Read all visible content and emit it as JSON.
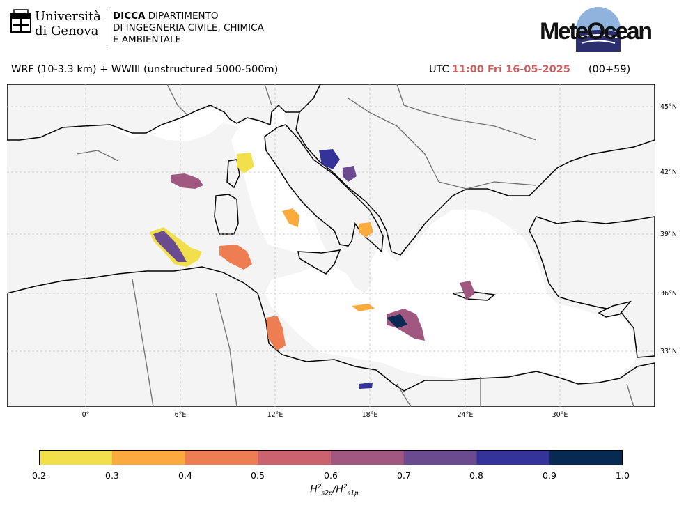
{
  "header": {
    "university_line1": "Università",
    "university_line2": "di Genova",
    "dicca_bold": "DICCA",
    "dicca_line1_rest": " DIPARTIMENTO",
    "dicca_line2": "DI INGEGNERIA CIVILE, CHIMICA",
    "dicca_line3": "E AMBIENTALE",
    "brand": "MeteOcean"
  },
  "subtitle": "WRF (10-3.3 km) + WWIII (unstructured 5000-500m)",
  "utc": {
    "prefix": "UTC",
    "time": "11:00 Fri 16-05-2025",
    "offset": "(00+59)"
  },
  "map": {
    "lat_ticks": [
      "45°N",
      "42°N",
      "39°N",
      "36°N",
      "33°N"
    ],
    "lon_ticks": [
      "0°",
      "6°E",
      "12°E",
      "18°E",
      "24°E",
      "30°E"
    ],
    "colors": {
      "land": "#f4f4f4",
      "sea": "#ffffff",
      "coast": "#000000",
      "border": "#6e6e6e",
      "grid": "#bdbdbd"
    }
  },
  "colorbar": {
    "ticks": [
      "0.2",
      "0.3",
      "0.4",
      "0.5",
      "0.6",
      "0.7",
      "0.8",
      "0.9",
      "1.0"
    ],
    "colors": [
      "#f1e04b",
      "#fbaa3e",
      "#ee7d51",
      "#cb6270",
      "#a05880",
      "#6b4b8f",
      "#34339a",
      "#082a52"
    ],
    "label_base": "H",
    "label_sub1": "s2p",
    "label_sub2": "s1p",
    "label_sup": "2"
  }
}
